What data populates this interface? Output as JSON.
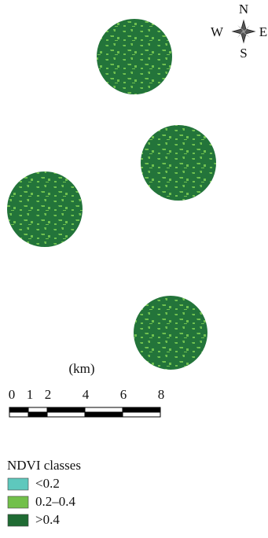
{
  "compass": {
    "north": "N",
    "south": "S",
    "west": "W",
    "east": "E"
  },
  "scale_bar": {
    "unit": "(km)",
    "labels": [
      "0",
      "1",
      "2",
      "4",
      "6",
      "8"
    ]
  },
  "legend": {
    "title": "NDVI classes",
    "items": [
      {
        "label": "<0.2",
        "color": "#5ec8bd"
      },
      {
        "label": "0.2–0.4",
        "color": "#72c04a"
      },
      {
        "label": ">0.4",
        "color": "#1f6b33"
      }
    ]
  }
}
